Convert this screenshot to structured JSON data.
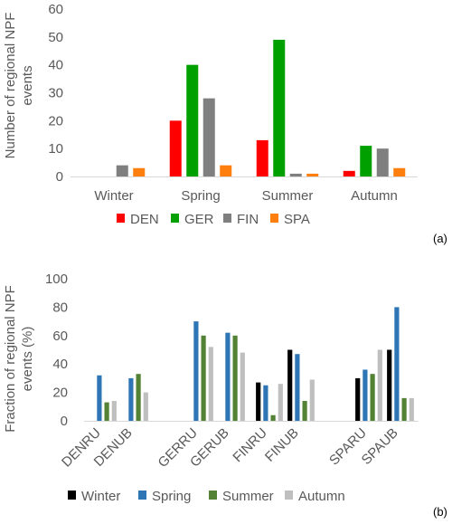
{
  "chart_data": [
    {
      "type": "bar",
      "panel_label": "(a)",
      "ylabel": "Number of regional NPF events",
      "ylim": [
        0,
        60
      ],
      "yticks": [
        0,
        10,
        20,
        30,
        40,
        50,
        60
      ],
      "grid": false,
      "legend_position": "bottom",
      "categories": [
        "Winter",
        "Spring",
        "Summer",
        "Autumn"
      ],
      "series": [
        {
          "name": "DEN",
          "color": "#ff0000",
          "values": [
            0,
            20,
            13,
            2
          ]
        },
        {
          "name": "GER",
          "color": "#00a000",
          "values": [
            0,
            40,
            49,
            11
          ]
        },
        {
          "name": "FIN",
          "color": "#7f7f7f",
          "values": [
            4,
            28,
            1,
            10
          ]
        },
        {
          "name": "SPA",
          "color": "#ff7f0e",
          "values": [
            3,
            4,
            1,
            3
          ]
        }
      ]
    },
    {
      "type": "bar",
      "panel_label": "(b)",
      "ylabel": "Fraction of regional NPF events (%)",
      "ylim": [
        0,
        100
      ],
      "yticks": [
        0,
        20,
        40,
        60,
        80,
        100
      ],
      "grid": false,
      "legend_position": "bottom",
      "categories": [
        "DENRU",
        "DENUB",
        "GERRU",
        "GERUB",
        "FINRU",
        "FINUB",
        "SPARU",
        "SPAUB"
      ],
      "series": [
        {
          "name": "Winter",
          "color": "#000000",
          "values": [
            0,
            0,
            0,
            0,
            27,
            50,
            30,
            50
          ]
        },
        {
          "name": "Spring",
          "color": "#2e75b6",
          "values": [
            32,
            30,
            70,
            62,
            25,
            47,
            36,
            80
          ]
        },
        {
          "name": "Summer",
          "color": "#548235",
          "values": [
            13,
            33,
            60,
            60,
            4,
            14,
            33,
            16
          ]
        },
        {
          "name": "Autumn",
          "color": "#bfbfbf",
          "values": [
            14,
            20,
            52,
            48,
            26,
            29,
            50,
            16
          ]
        }
      ]
    }
  ]
}
